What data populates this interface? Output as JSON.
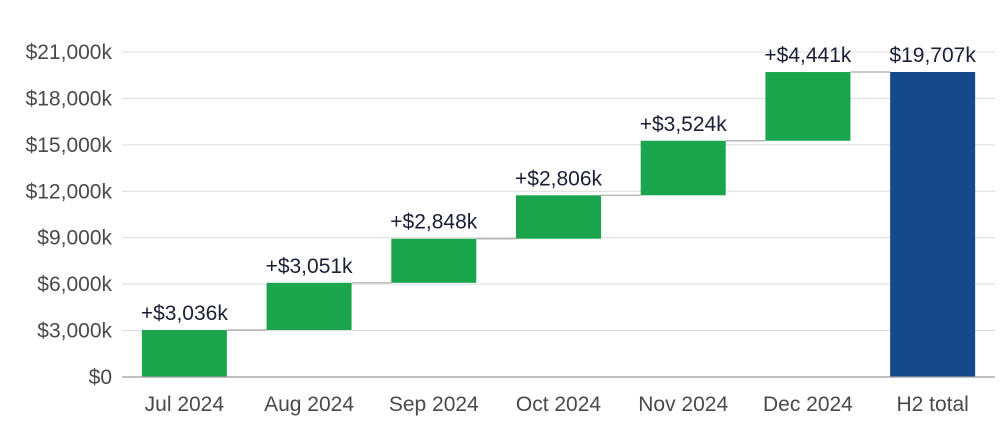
{
  "chart_data": {
    "type": "bar",
    "subtype": "waterfall",
    "title": "",
    "xlabel": "",
    "ylabel": "",
    "categories": [
      "Jul 2024",
      "Aug 2024",
      "Sep 2024",
      "Oct 2024",
      "Nov 2024",
      "Dec 2024",
      "H2 total"
    ],
    "values": [
      3036,
      3051,
      2848,
      2806,
      3524,
      4441,
      19707
    ],
    "data_labels": [
      "+$3,036k",
      "+$3,051k",
      "+$2,848k",
      "+$2,806k",
      "+$3,524k",
      "+$4,441k",
      "$19,707k"
    ],
    "total_index": 6,
    "ylim": [
      0,
      21000
    ],
    "yticks": [
      0,
      3000,
      6000,
      9000,
      12000,
      15000,
      18000,
      21000
    ],
    "ytick_labels": [
      "$0",
      "$3,000k",
      "$6,000k",
      "$9,000k",
      "$12,000k",
      "$15,000k",
      "$18,000k",
      "$21,000k"
    ],
    "grid": true,
    "legend": "none",
    "colors": {
      "increase": "#1aa44b",
      "total": "#154a8a"
    }
  }
}
